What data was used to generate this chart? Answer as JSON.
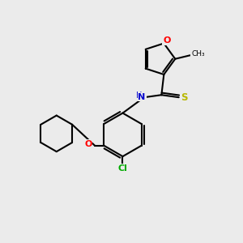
{
  "background_color": "#ebebeb",
  "bond_color": "#000000",
  "atom_colors": {
    "O": "#ff0000",
    "N": "#0000cd",
    "S": "#b8b800",
    "Cl": "#00aa00",
    "C": "#000000",
    "H": "#000000"
  }
}
